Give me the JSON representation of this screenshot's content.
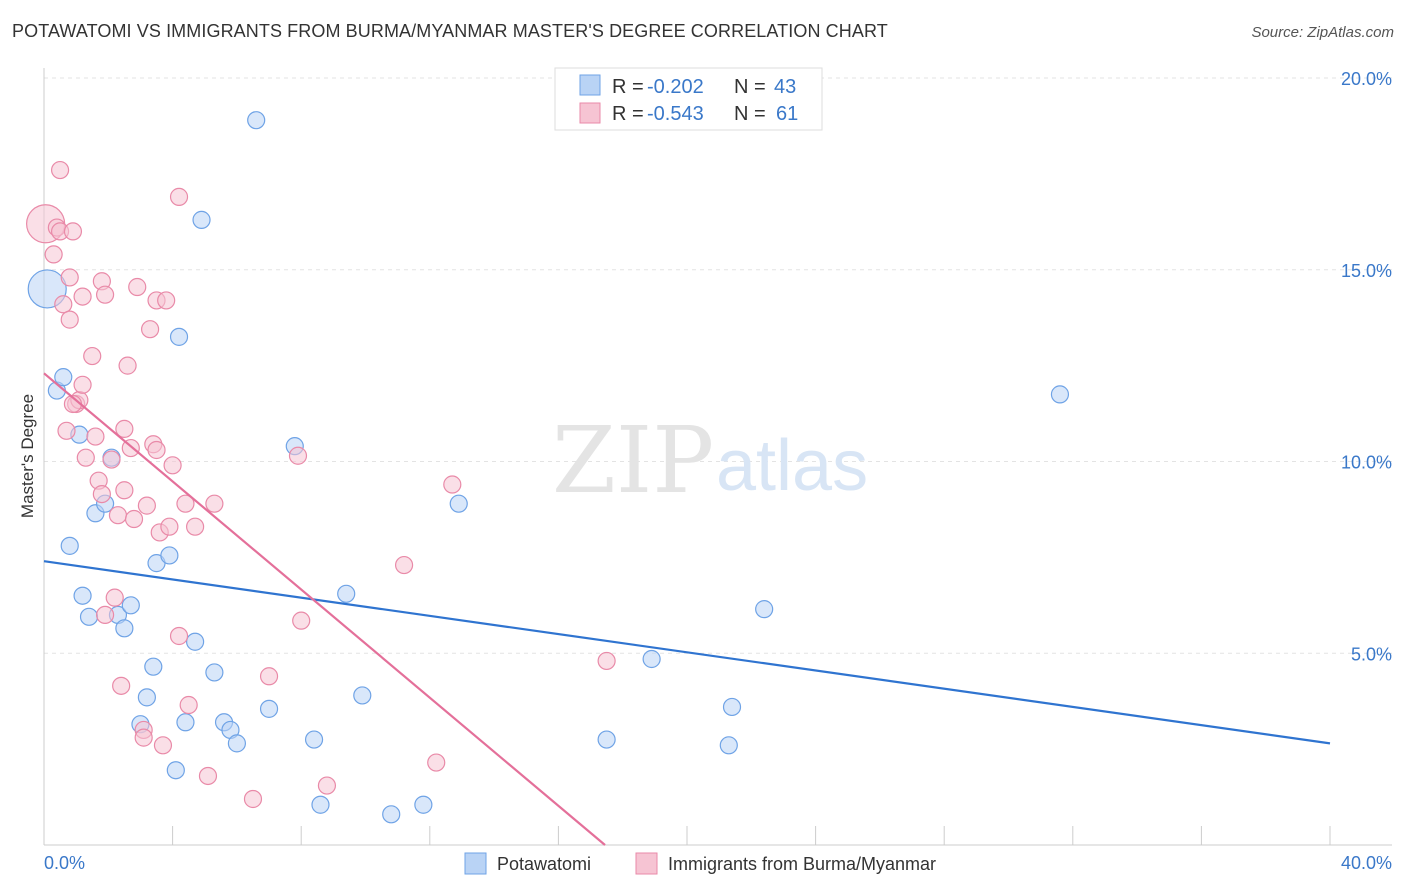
{
  "title": "POTAWATOMI VS IMMIGRANTS FROM BURMA/MYANMAR MASTER'S DEGREE CORRELATION CHART",
  "source": "Source: ZipAtlas.com",
  "watermark": {
    "zip": "ZIP",
    "atlas": "atlas"
  },
  "colors": {
    "blue": "#6fa3e6",
    "blue_fill": "#b9d3f5",
    "blue_line": "#2f74d0",
    "pink": "#e98aa8",
    "pink_fill": "#f6c4d3",
    "pink_line": "#e4709a",
    "tick_text": "#3a78c9",
    "grid": "#e3e3e3"
  },
  "legend": {
    "rows": [
      {
        "r_label": "R = ",
        "r_value": "-0.202",
        "n_label": "N = ",
        "n_value": "43"
      },
      {
        "r_label": "R = ",
        "r_value": "-0.543",
        "n_label": "N = ",
        "n_value": "61"
      }
    ]
  },
  "bottom_legend": [
    "Potawatomi",
    "Immigrants from Burma/Myanmar"
  ],
  "chart_data": {
    "type": "scatter",
    "title": "POTAWATOMI VS IMMIGRANTS FROM BURMA/MYANMAR MASTER'S DEGREE CORRELATION CHART",
    "xlabel": "",
    "ylabel": "Master's Degree",
    "xlim": [
      0,
      40
    ],
    "ylim": [
      0,
      20
    ],
    "x_tick_labels": [
      "0.0%",
      "40.0%"
    ],
    "y_ticks": [
      5,
      10,
      15,
      20
    ],
    "y_tick_labels": [
      "5.0%",
      "10.0%",
      "15.0%",
      "20.0%"
    ],
    "grid": true,
    "legend_position": "top-center",
    "series": [
      {
        "name": "Potawatomi",
        "color": "#6fa3e6",
        "trend": {
          "x": [
            0,
            40
          ],
          "y": [
            7.4,
            2.65
          ]
        },
        "points": [
          {
            "x": 0.1,
            "y": 14.5,
            "big": true
          },
          {
            "x": 0.4,
            "y": 11.85
          },
          {
            "x": 0.6,
            "y": 12.2
          },
          {
            "x": 1.1,
            "y": 10.7
          },
          {
            "x": 0.8,
            "y": 7.8
          },
          {
            "x": 1.2,
            "y": 6.5
          },
          {
            "x": 1.4,
            "y": 5.95
          },
          {
            "x": 1.6,
            "y": 8.65
          },
          {
            "x": 1.9,
            "y": 8.9
          },
          {
            "x": 2.1,
            "y": 10.1
          },
          {
            "x": 2.3,
            "y": 6.0
          },
          {
            "x": 2.5,
            "y": 5.65
          },
          {
            "x": 2.7,
            "y": 6.25
          },
          {
            "x": 3.0,
            "y": 3.15
          },
          {
            "x": 3.2,
            "y": 3.85
          },
          {
            "x": 3.4,
            "y": 4.65
          },
          {
            "x": 3.5,
            "y": 7.35
          },
          {
            "x": 3.9,
            "y": 7.55
          },
          {
            "x": 4.1,
            "y": 1.95
          },
          {
            "x": 4.2,
            "y": 13.25
          },
          {
            "x": 4.4,
            "y": 3.2
          },
          {
            "x": 4.7,
            "y": 5.3
          },
          {
            "x": 4.9,
            "y": 16.3
          },
          {
            "x": 5.3,
            "y": 4.5
          },
          {
            "x": 5.6,
            "y": 3.2
          },
          {
            "x": 5.8,
            "y": 3.0
          },
          {
            "x": 6.0,
            "y": 2.65
          },
          {
            "x": 6.6,
            "y": 18.9
          },
          {
            "x": 7.0,
            "y": 3.55
          },
          {
            "x": 7.8,
            "y": 10.4
          },
          {
            "x": 8.4,
            "y": 2.75
          },
          {
            "x": 8.6,
            "y": 1.05
          },
          {
            "x": 9.4,
            "y": 6.55
          },
          {
            "x": 9.9,
            "y": 3.9
          },
          {
            "x": 10.8,
            "y": 0.8
          },
          {
            "x": 11.8,
            "y": 1.05
          },
          {
            "x": 12.9,
            "y": 8.9
          },
          {
            "x": 17.5,
            "y": 2.75
          },
          {
            "x": 18.9,
            "y": 4.85
          },
          {
            "x": 21.3,
            "y": 2.6
          },
          {
            "x": 21.4,
            "y": 3.6
          },
          {
            "x": 22.4,
            "y": 6.15
          },
          {
            "x": 31.6,
            "y": 11.75
          }
        ]
      },
      {
        "name": "Immigrants from Burma/Myanmar",
        "color": "#e98aa8",
        "trend": {
          "x": [
            0,
            17.45
          ],
          "y": [
            12.3,
            0
          ]
        },
        "points": [
          {
            "x": 0.05,
            "y": 16.2,
            "big": true
          },
          {
            "x": 0.3,
            "y": 15.4
          },
          {
            "x": 0.4,
            "y": 16.1
          },
          {
            "x": 0.5,
            "y": 17.6
          },
          {
            "x": 0.5,
            "y": 16.0
          },
          {
            "x": 0.6,
            "y": 14.1
          },
          {
            "x": 0.7,
            "y": 10.8
          },
          {
            "x": 0.8,
            "y": 14.8
          },
          {
            "x": 0.8,
            "y": 13.7
          },
          {
            "x": 0.9,
            "y": 16.0
          },
          {
            "x": 1.0,
            "y": 11.5
          },
          {
            "x": 1.1,
            "y": 11.6
          },
          {
            "x": 1.2,
            "y": 12.0
          },
          {
            "x": 1.2,
            "y": 14.3
          },
          {
            "x": 1.3,
            "y": 10.1
          },
          {
            "x": 1.5,
            "y": 12.75
          },
          {
            "x": 1.6,
            "y": 10.65
          },
          {
            "x": 1.7,
            "y": 9.5
          },
          {
            "x": 1.8,
            "y": 9.15
          },
          {
            "x": 1.8,
            "y": 14.7
          },
          {
            "x": 1.9,
            "y": 14.35
          },
          {
            "x": 2.1,
            "y": 10.05
          },
          {
            "x": 2.2,
            "y": 6.45
          },
          {
            "x": 2.3,
            "y": 8.6
          },
          {
            "x": 2.4,
            "y": 4.15
          },
          {
            "x": 2.5,
            "y": 9.25
          },
          {
            "x": 2.5,
            "y": 10.85
          },
          {
            "x": 2.6,
            "y": 12.5
          },
          {
            "x": 2.7,
            "y": 10.35
          },
          {
            "x": 2.8,
            "y": 8.5
          },
          {
            "x": 2.9,
            "y": 14.55
          },
          {
            "x": 3.1,
            "y": 3.0
          },
          {
            "x": 3.1,
            "y": 2.8
          },
          {
            "x": 3.2,
            "y": 8.85
          },
          {
            "x": 3.3,
            "y": 13.45
          },
          {
            "x": 3.4,
            "y": 10.45
          },
          {
            "x": 3.5,
            "y": 10.3
          },
          {
            "x": 3.5,
            "y": 14.2
          },
          {
            "x": 3.6,
            "y": 8.15
          },
          {
            "x": 3.7,
            "y": 2.6
          },
          {
            "x": 3.8,
            "y": 14.2
          },
          {
            "x": 3.9,
            "y": 8.3
          },
          {
            "x": 4.0,
            "y": 9.9
          },
          {
            "x": 4.2,
            "y": 5.45
          },
          {
            "x": 4.2,
            "y": 16.9
          },
          {
            "x": 4.4,
            "y": 8.9
          },
          {
            "x": 4.5,
            "y": 3.65
          },
          {
            "x": 4.7,
            "y": 8.3
          },
          {
            "x": 5.1,
            "y": 1.8
          },
          {
            "x": 5.3,
            "y": 8.9
          },
          {
            "x": 6.5,
            "y": 1.2
          },
          {
            "x": 7.0,
            "y": 4.4
          },
          {
            "x": 7.9,
            "y": 10.15
          },
          {
            "x": 8.0,
            "y": 5.85
          },
          {
            "x": 8.8,
            "y": 1.55
          },
          {
            "x": 11.2,
            "y": 7.3
          },
          {
            "x": 12.2,
            "y": 2.15
          },
          {
            "x": 12.7,
            "y": 9.4
          },
          {
            "x": 17.5,
            "y": 4.8
          },
          {
            "x": 1.9,
            "y": 6.0
          },
          {
            "x": 0.9,
            "y": 11.5
          }
        ]
      }
    ]
  }
}
